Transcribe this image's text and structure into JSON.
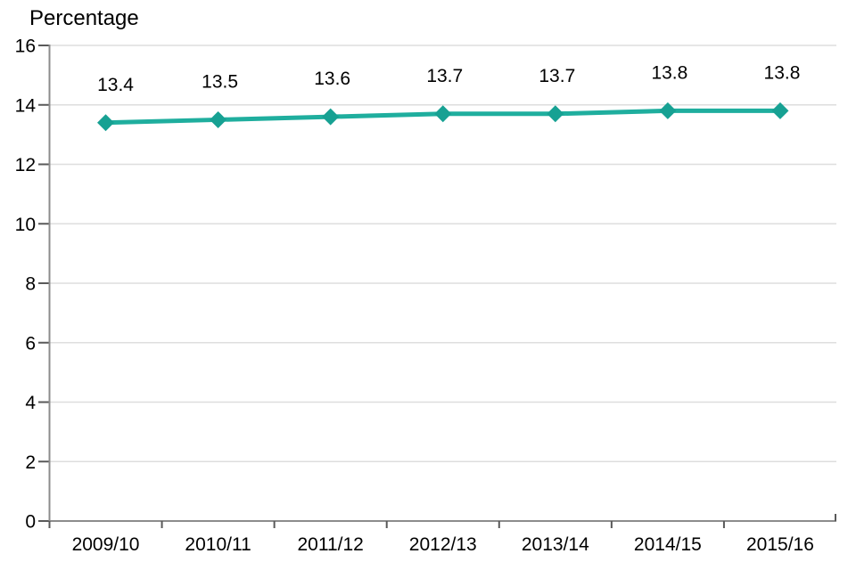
{
  "page": {
    "background": "#ffffff"
  },
  "chart_data": {
    "type": "line",
    "title": "Percentage",
    "categories": [
      "2009/10",
      "2010/11",
      "2011/12",
      "2012/13",
      "2013/14",
      "2014/15",
      "2015/16"
    ],
    "series": [
      {
        "name": "Percentage",
        "values": [
          13.4,
          13.5,
          13.6,
          13.7,
          13.7,
          13.8,
          13.8
        ]
      }
    ],
    "data_labels": [
      "13.4",
      "13.5",
      "13.6",
      "13.7",
      "13.7",
      "13.8",
      "13.8"
    ],
    "xlabel": "",
    "ylabel": "Percentage",
    "ylim": [
      0,
      16
    ],
    "ytick_step": 2,
    "ytick_labels": [
      "0",
      "2",
      "4",
      "6",
      "8",
      "10",
      "12",
      "14",
      "16"
    ],
    "grid": true,
    "legend": "none",
    "marker": "diamond",
    "colors": {
      "line": "#1fae9e",
      "marker": "#17a193",
      "axis": "#8c8c8c",
      "tick": "#595959",
      "gridline": "#dedede",
      "text": "#000000"
    }
  }
}
